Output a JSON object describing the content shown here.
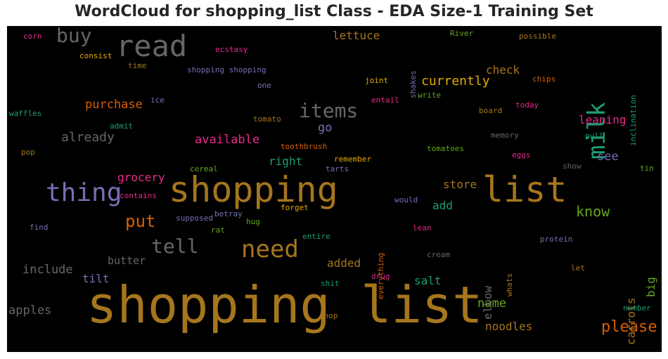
{
  "title": "WordCloud for shopping_list Class - EDA Size-1 Training Set",
  "palette": {
    "background": "#000000",
    "colors": [
      "#a6761d",
      "#666666",
      "#7570b3",
      "#1b9e77",
      "#d95f02",
      "#e7298a",
      "#66a61e",
      "#e6ab02"
    ]
  },
  "words": [
    {
      "text": "shopping list",
      "color": "#a6761d"
    },
    {
      "text": "shopping",
      "color": "#a6761d"
    },
    {
      "text": "list",
      "color": "#a6761d"
    },
    {
      "text": "read",
      "color": "#666666"
    },
    {
      "text": "thing",
      "color": "#7570b3"
    },
    {
      "text": "need",
      "color": "#a6761d"
    },
    {
      "text": "milk",
      "color": "#1b9e77"
    },
    {
      "text": "buy",
      "color": "#666666"
    },
    {
      "text": "items",
      "color": "#666666"
    },
    {
      "text": "tell",
      "color": "#666666"
    },
    {
      "text": "put",
      "color": "#d95f02"
    },
    {
      "text": "please",
      "color": "#d95f02"
    },
    {
      "text": "know",
      "color": "#66a61e"
    },
    {
      "text": "currently",
      "color": "#e6ab02"
    },
    {
      "text": "already",
      "color": "#666666"
    },
    {
      "text": "available",
      "color": "#e7298a"
    },
    {
      "text": "grocery",
      "color": "#e7298a"
    },
    {
      "text": "include",
      "color": "#666666"
    },
    {
      "text": "apples",
      "color": "#666666"
    },
    {
      "text": "purchase",
      "color": "#d95f02"
    },
    {
      "text": "check",
      "color": "#a6761d"
    },
    {
      "text": "leaning",
      "color": "#e7298a"
    },
    {
      "text": "lettuce",
      "color": "#a6761d"
    },
    {
      "text": "go",
      "color": "#7570b3"
    },
    {
      "text": "right",
      "color": "#1b9e77"
    },
    {
      "text": "see",
      "color": "#7570b3"
    },
    {
      "text": "store",
      "color": "#a6761d"
    },
    {
      "text": "add",
      "color": "#1b9e77"
    },
    {
      "text": "butter",
      "color": "#666666"
    },
    {
      "text": "tilt",
      "color": "#7570b3"
    },
    {
      "text": "added",
      "color": "#a6761d"
    },
    {
      "text": "salt",
      "color": "#1b9e77"
    },
    {
      "text": "name",
      "color": "#66a61e"
    },
    {
      "text": "noodles",
      "color": "#a6761d"
    },
    {
      "text": "elbow",
      "color": "#666666"
    },
    {
      "text": "carrots",
      "color": "#a6761d"
    },
    {
      "text": "big",
      "color": "#66a61e"
    },
    {
      "text": "corn",
      "color": "#e7298a"
    },
    {
      "text": "consist",
      "color": "#e6ab02"
    },
    {
      "text": "time",
      "color": "#a6761d"
    },
    {
      "text": "waffles",
      "color": "#1b9e77"
    },
    {
      "text": "pop",
      "color": "#a6761d"
    },
    {
      "text": "find",
      "color": "#7570b3"
    },
    {
      "text": "ecstasy",
      "color": "#e7298a"
    },
    {
      "text": "shopping shopping",
      "color": "#7570b3"
    },
    {
      "text": "one",
      "color": "#7570b3"
    },
    {
      "text": "ice",
      "color": "#7570b3"
    },
    {
      "text": "admit",
      "color": "#1b9e77"
    },
    {
      "text": "tomato",
      "color": "#a6761d"
    },
    {
      "text": "toothbrush",
      "color": "#d95f02"
    },
    {
      "text": "remember",
      "color": "#e6ab02"
    },
    {
      "text": "tarts",
      "color": "#7570b3"
    },
    {
      "text": "cereal",
      "color": "#66a61e"
    },
    {
      "text": "contains",
      "color": "#e7298a"
    },
    {
      "text": "supposed",
      "color": "#7570b3"
    },
    {
      "text": "betray",
      "color": "#7570b3"
    },
    {
      "text": "rat",
      "color": "#66a61e"
    },
    {
      "text": "hug",
      "color": "#66a61e"
    },
    {
      "text": "forget",
      "color": "#e6ab02"
    },
    {
      "text": "would",
      "color": "#7570b3"
    },
    {
      "text": "everything",
      "color": "#d95f02"
    },
    {
      "text": "entire",
      "color": "#1b9e77"
    },
    {
      "text": "lean",
      "color": "#e7298a"
    },
    {
      "text": "cream",
      "color": "#666666"
    },
    {
      "text": "drug",
      "color": "#e7298a"
    },
    {
      "text": "shit",
      "color": "#1b9e77"
    },
    {
      "text": "shop",
      "color": "#a6761d"
    },
    {
      "text": "River",
      "color": "#66a61e"
    },
    {
      "text": "possible",
      "color": "#a6761d"
    },
    {
      "text": "shakes",
      "color": "#7570b3"
    },
    {
      "text": "joint",
      "color": "#e6ab02"
    },
    {
      "text": "entail",
      "color": "#e7298a"
    },
    {
      "text": "write",
      "color": "#66a61e"
    },
    {
      "text": "chips",
      "color": "#d95f02"
    },
    {
      "text": "inclination",
      "color": "#1b9e77"
    },
    {
      "text": "board",
      "color": "#a6761d"
    },
    {
      "text": "today",
      "color": "#e7298a"
    },
    {
      "text": "memory",
      "color": "#666666"
    },
    {
      "text": "pull",
      "color": "#1b9e77"
    },
    {
      "text": "tomatoes",
      "color": "#66a61e"
    },
    {
      "text": "eggs",
      "color": "#e7298a"
    },
    {
      "text": "show",
      "color": "#666666"
    },
    {
      "text": "tin",
      "color": "#66a61e"
    },
    {
      "text": "protein",
      "color": "#7570b3"
    },
    {
      "text": "whats",
      "color": "#a6761d"
    },
    {
      "text": "let",
      "color": "#a6761d"
    },
    {
      "text": "number",
      "color": "#1b9e77"
    }
  ]
}
